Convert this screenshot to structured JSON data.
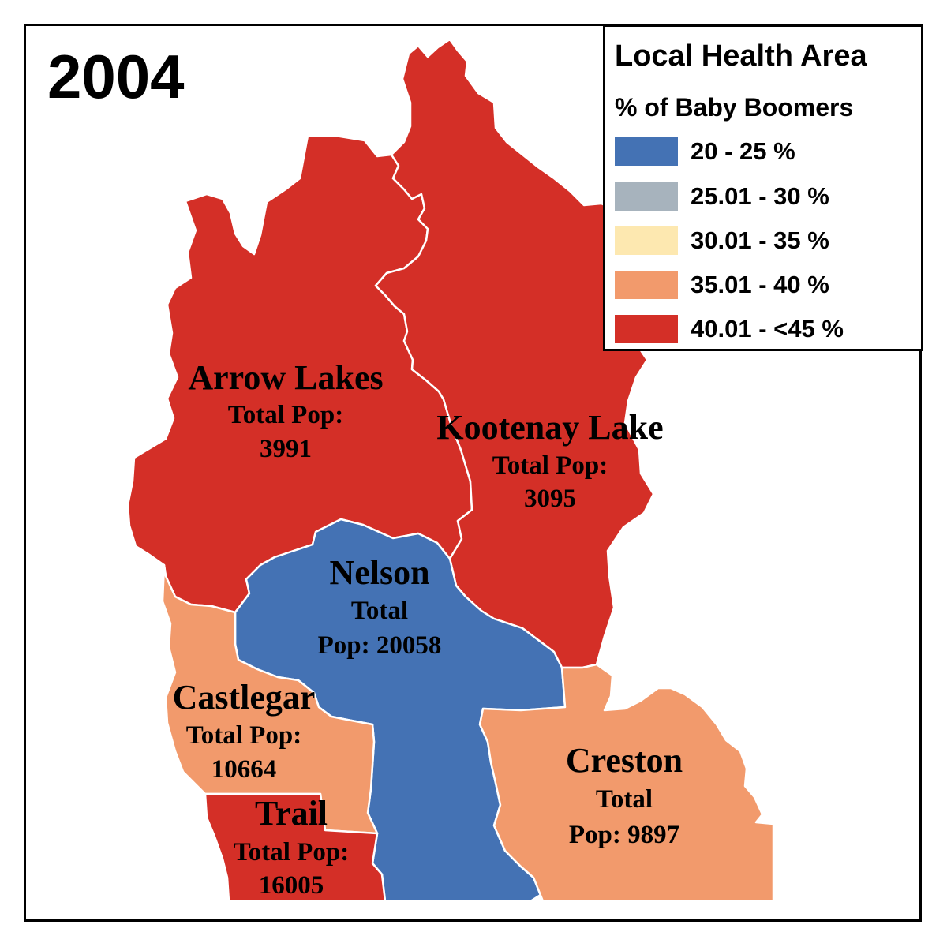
{
  "title": "2004",
  "legend": {
    "title": "Local Health Area",
    "subtitle": "% of Baby Boomers",
    "items": [
      {
        "label": "20 - 25 %",
        "color": "#4472b4"
      },
      {
        "label": "25.01 - 30 %",
        "color": "#a7b3bd"
      },
      {
        "label": "30.01 - 35 %",
        "color": "#fde8b0"
      },
      {
        "label": "35.01 - 40 %",
        "color": "#f29a6c"
      },
      {
        "label": "40.01 - <45 %",
        "color": "#d42f27"
      }
    ]
  },
  "regions": [
    {
      "id": "arrow-lakes",
      "name": "Arrow Lakes",
      "line2": "Total Pop:",
      "line3": "3991",
      "category": "40.01 - <45 %"
    },
    {
      "id": "kootenay-lake",
      "name": "Kootenay Lake",
      "line2": "Total Pop:",
      "line3": "3095",
      "category": "40.01 - <45 %"
    },
    {
      "id": "nelson",
      "name": "Nelson",
      "line2": "Total",
      "line3": "Pop: 20058",
      "category": "20 - 25 %"
    },
    {
      "id": "castlegar",
      "name": "Castlegar",
      "line2": "Total Pop:",
      "line3": "10664",
      "category": "35.01 - 40 %"
    },
    {
      "id": "trail",
      "name": "Trail",
      "line2": "Total Pop:",
      "line3": "16005",
      "category": "40.01 - <45 %"
    },
    {
      "id": "creston",
      "name": "Creston",
      "line2": "Total",
      "line3": "Pop: 9897",
      "category": "35.01 - 40 %"
    }
  ]
}
